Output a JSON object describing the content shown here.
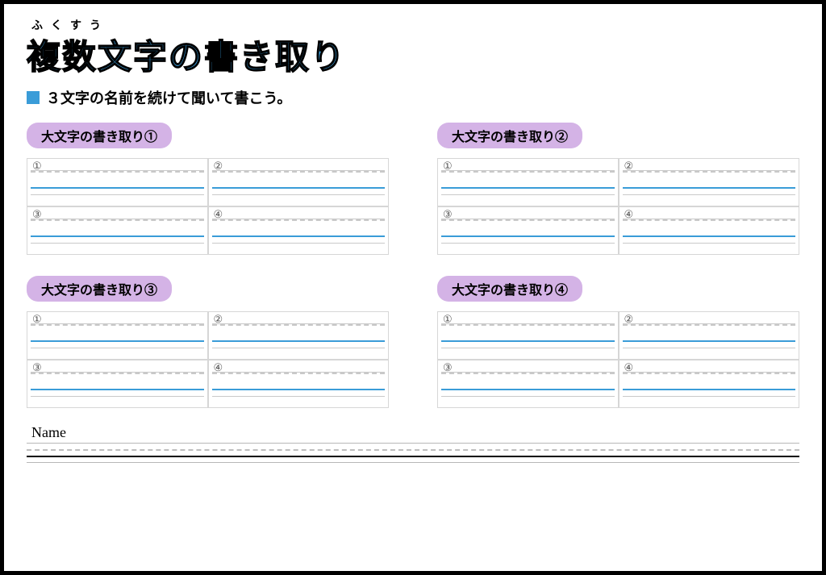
{
  "furigana": "ふくすう",
  "title": "複数文字の書き取り",
  "instruction": "３文字の名前を続けて聞いて書こう。",
  "colors": {
    "title_fill": "#3a9cd8",
    "title_stroke": "#000000",
    "bullet": "#3a9cd8",
    "pill_bg": "#d4b3e6",
    "cell_border": "#d6d6d6",
    "dash_line": "#c9c9c9",
    "blue_line": "#3a9cd8",
    "page_border": "#000000",
    "name_line": "#b8b8b8",
    "name_bold": "#000000"
  },
  "sections": [
    {
      "label": "大文字の書き取り①",
      "cells": [
        "①",
        "②",
        "③",
        "④"
      ]
    },
    {
      "label": "大文字の書き取り②",
      "cells": [
        "①",
        "②",
        "③",
        "④"
      ]
    },
    {
      "label": "大文字の書き取り③",
      "cells": [
        "①",
        "②",
        "③",
        "④"
      ]
    },
    {
      "label": "大文字の書き取り④",
      "cells": [
        "①",
        "②",
        "③",
        "④"
      ]
    }
  ],
  "name_label": "Name"
}
